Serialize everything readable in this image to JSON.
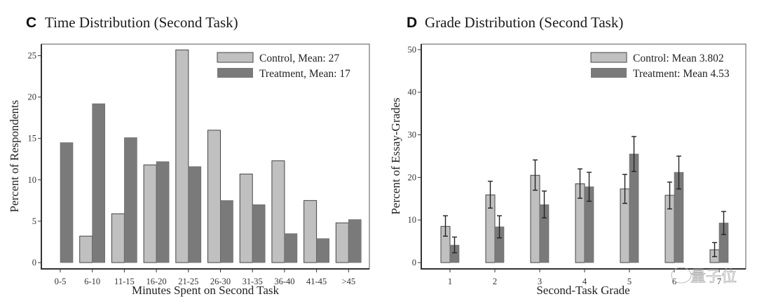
{
  "colors": {
    "control": "#c0c0c0",
    "treatment": "#7a7a7a",
    "bar_edge": "#444444",
    "error_bar": "#222222"
  },
  "watermark": "量子位",
  "chart_data": [
    {
      "type": "bar",
      "panel_letter": "C",
      "title": "Time Distribution (Second Task)",
      "xlabel": "Minutes Spent on Second Task",
      "ylabel": "Percent of Respondents",
      "ylim": [
        0,
        26.4
      ],
      "yticks": [
        0,
        5,
        10,
        15,
        20,
        25
      ],
      "grid": false,
      "legend_position": "top-right",
      "categories": [
        "0-5",
        "6-10",
        "11-15",
        "16-20",
        "21-25",
        "26-30",
        "31-35",
        "36-40",
        "41-45",
        ">45"
      ],
      "series": [
        {
          "name": "Control, Mean: 27",
          "key": "control",
          "values": [
            0,
            3.2,
            5.9,
            11.8,
            25.7,
            16.0,
            10.7,
            12.3,
            7.5,
            4.8
          ]
        },
        {
          "name": "Treatment, Mean: 17",
          "key": "treatment",
          "values": [
            14.5,
            19.2,
            15.1,
            12.2,
            11.6,
            7.5,
            7.0,
            3.5,
            2.9,
            5.2
          ]
        }
      ]
    },
    {
      "type": "bar",
      "panel_letter": "D",
      "title": "Grade Distribution (Second Task)",
      "xlabel": "Second-Task Grade",
      "ylabel": "Percent of Essay-Grades",
      "ylim": [
        0,
        51.3
      ],
      "yticks": [
        0,
        10,
        20,
        30,
        40,
        50
      ],
      "grid": false,
      "legend_position": "top-right",
      "categories": [
        "1",
        "2",
        "3",
        "4",
        "5",
        "6",
        "7"
      ],
      "series": [
        {
          "name": "Control: Mean 3.802",
          "key": "control",
          "values": [
            8.5,
            15.9,
            20.5,
            18.5,
            17.3,
            15.8,
            3.0
          ],
          "error_low": [
            6.2,
            12.8,
            17.0,
            15.1,
            13.9,
            12.6,
            1.4
          ],
          "error_high": [
            11.0,
            19.1,
            24.1,
            22.0,
            20.7,
            18.9,
            4.7
          ]
        },
        {
          "name": "Treatment: Mean 4.53",
          "key": "treatment",
          "values": [
            4.1,
            8.4,
            13.6,
            17.8,
            25.5,
            21.2,
            9.3
          ],
          "error_low": [
            2.3,
            5.8,
            10.5,
            14.4,
            21.4,
            17.3,
            6.6
          ],
          "error_high": [
            6.0,
            11.0,
            16.8,
            21.2,
            29.6,
            25.0,
            12.0
          ]
        }
      ]
    }
  ]
}
